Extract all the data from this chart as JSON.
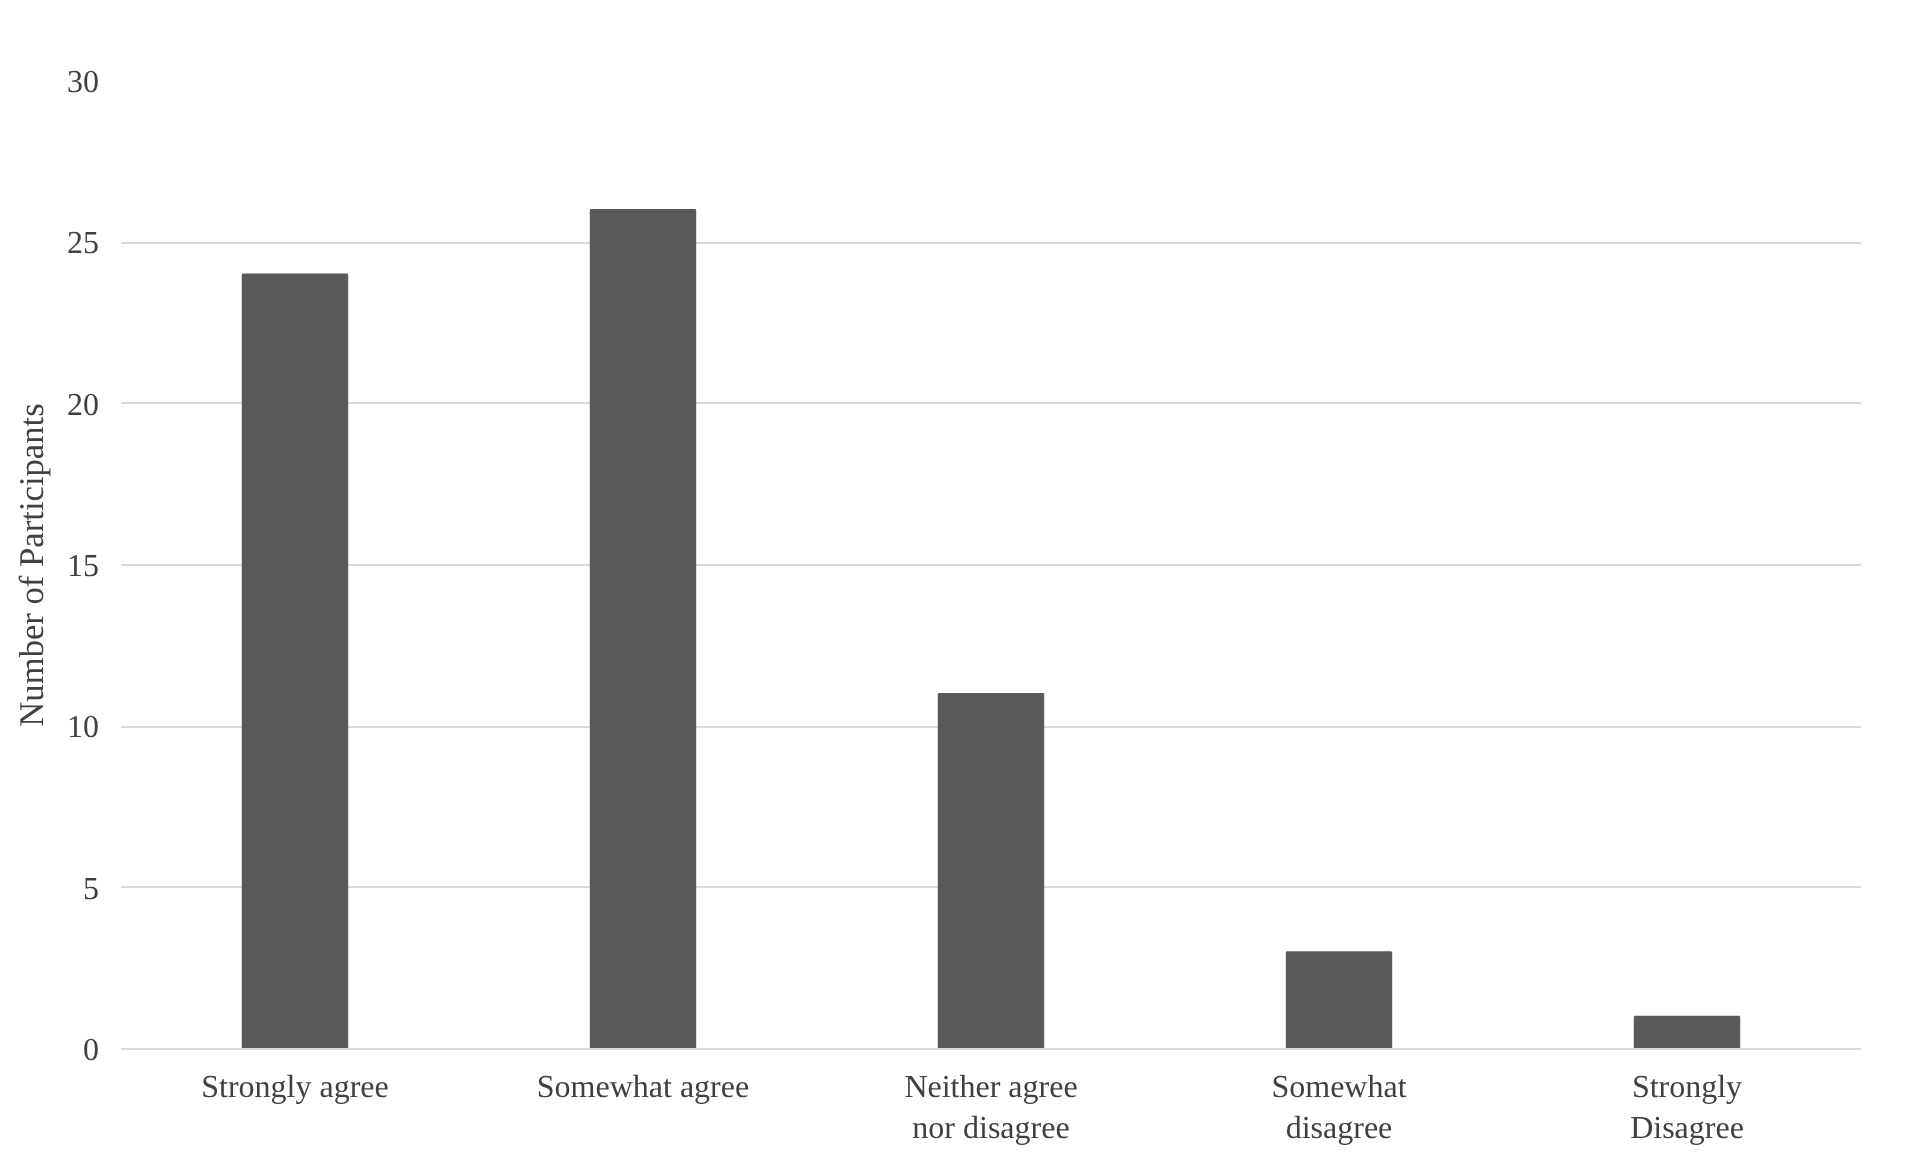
{
  "chart_data": {
    "type": "bar",
    "ylabel": "Number of Participants",
    "categories": [
      "Strongly agree",
      "Somewhat agree",
      "Neither agree nor disagree",
      "Somewhat disagree",
      "Strongly Disagree"
    ],
    "values": [
      24,
      26,
      11,
      3,
      1
    ],
    "color": "#595959",
    "ylim": [
      0,
      30
    ],
    "yticks": [
      0,
      5,
      10,
      15,
      20,
      25,
      30
    ],
    "grid": "y"
  }
}
